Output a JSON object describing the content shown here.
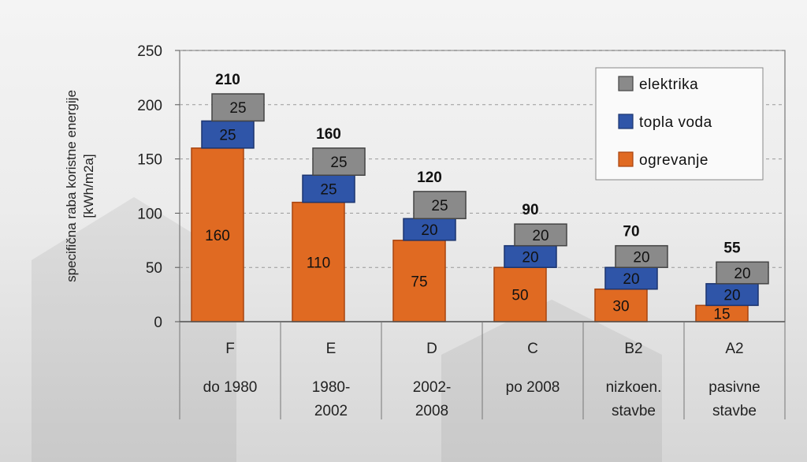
{
  "chart_data": {
    "type": "bar",
    "stacked": true,
    "ylabel_line1": "specifična raba koristne energije",
    "ylabel_line2": "[kWh/m2a]",
    "ylim": [
      0,
      250
    ],
    "yticks": [
      0,
      50,
      100,
      150,
      200,
      250
    ],
    "grid": true,
    "legend_position": "top-right",
    "categories": [
      {
        "class": "F",
        "period_line1": "do 1980",
        "period_line2": ""
      },
      {
        "class": "E",
        "period_line1": "1980-",
        "period_line2": "2002"
      },
      {
        "class": "D",
        "period_line1": "2002-",
        "period_line2": "2008"
      },
      {
        "class": "C",
        "period_line1": "po 2008",
        "period_line2": ""
      },
      {
        "class": "B2",
        "period_line1": "nizkoen.",
        "period_line2": "stavbe"
      },
      {
        "class": "A2",
        "period_line1": "pasivne",
        "period_line2": "stavbe"
      }
    ],
    "totals": [
      210,
      160,
      120,
      90,
      70,
      55
    ],
    "series": [
      {
        "name": "ogrevanje",
        "color": "#e06a22",
        "values": [
          160,
          110,
          75,
          50,
          30,
          15
        ]
      },
      {
        "name": "topla voda",
        "color": "#2f55a8",
        "values": [
          25,
          25,
          20,
          20,
          20,
          20
        ]
      },
      {
        "name": "elektrika",
        "color": "#8a8a8a",
        "values": [
          25,
          25,
          25,
          20,
          20,
          20
        ]
      }
    ],
    "legend_order": [
      "elektrika",
      "topla voda",
      "ogrevanje"
    ]
  }
}
